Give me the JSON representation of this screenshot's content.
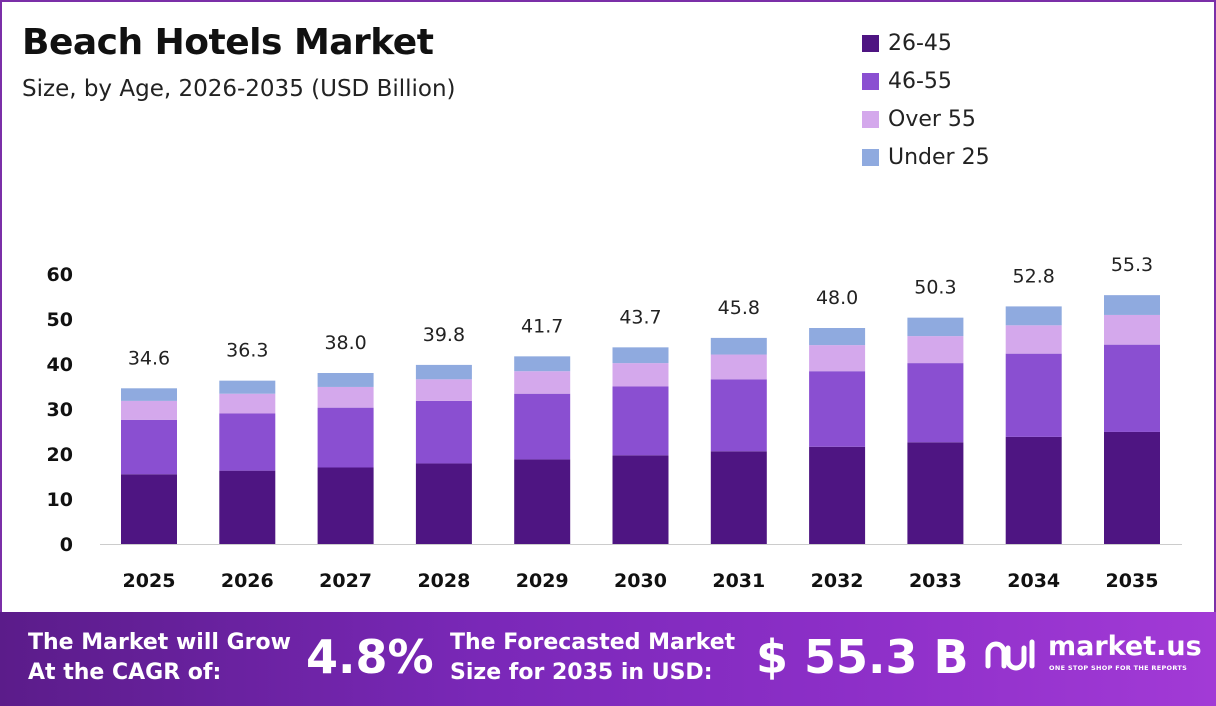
{
  "title": "Beach Hotels Market",
  "subtitle": "Size, by Age, 2026-2035 (USD Billion)",
  "legend": [
    {
      "label": "26-45",
      "color": "#4e1582"
    },
    {
      "label": "46-55",
      "color": "#8a4fd1"
    },
    {
      "label": "Over 55",
      "color": "#d4a8ec"
    },
    {
      "label": "Under 25",
      "color": "#8faadf"
    }
  ],
  "chart_data": {
    "type": "bar",
    "stacked": true,
    "categories": [
      "2025",
      "2026",
      "2027",
      "2028",
      "2029",
      "2030",
      "2031",
      "2032",
      "2033",
      "2034",
      "2035"
    ],
    "series": [
      {
        "name": "26-45",
        "values": [
          15.5,
          16.3,
          17.0,
          17.9,
          18.8,
          19.7,
          20.6,
          21.6,
          22.6,
          23.8,
          24.9
        ]
      },
      {
        "name": "46-55",
        "values": [
          12.1,
          12.7,
          13.3,
          13.9,
          14.6,
          15.3,
          16.0,
          16.8,
          17.6,
          18.5,
          19.4
        ]
      },
      {
        "name": "Over 55",
        "values": [
          4.2,
          4.4,
          4.6,
          4.8,
          5.0,
          5.2,
          5.5,
          5.8,
          6.0,
          6.3,
          6.6
        ]
      },
      {
        "name": "Under 25",
        "values": [
          2.8,
          2.9,
          3.1,
          3.2,
          3.3,
          3.5,
          3.7,
          3.8,
          4.1,
          4.2,
          4.4
        ]
      }
    ],
    "totals": [
      "34.6",
      "36.3",
      "38.0",
      "39.8",
      "41.7",
      "43.7",
      "45.8",
      "48.0",
      "50.3",
      "52.8",
      "55.3"
    ],
    "yticks": [
      "0",
      "10",
      "20",
      "30",
      "40",
      "50",
      "60"
    ],
    "ylim": [
      0,
      60
    ],
    "grid": false,
    "legend_position": "top-right"
  },
  "footer": {
    "cagr_text_line1": "The Market will Grow",
    "cagr_text_line2": "At the CAGR of:",
    "cagr_value": "4.8%",
    "forecast_text_line1": "The Forecasted Market",
    "forecast_text_line2": "Size for 2035 in USD:",
    "forecast_value": "$ 55.3 B",
    "logo_name": "market.us",
    "logo_tagline": "ONE STOP SHOP FOR THE REPORTS"
  }
}
